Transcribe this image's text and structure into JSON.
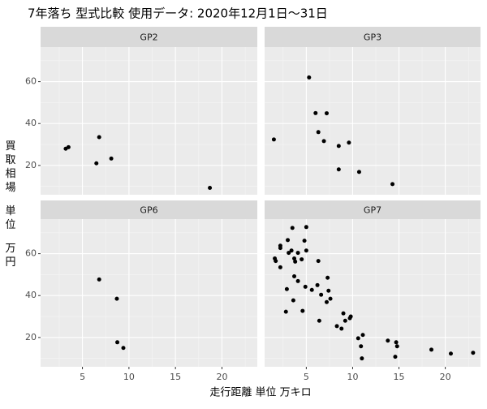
{
  "chart_data": {
    "type": "scatter",
    "title": "7年落ち 型式比較 使用データ: 2020年12月1日～31日",
    "x_label": "走行距離 単位 万キロ",
    "y_label": "買取相場 単位 万円",
    "xlim": [
      0.5,
      23.8
    ],
    "ylim": [
      6,
      76.5
    ],
    "xticks": [
      5,
      10,
      15,
      20
    ],
    "yticks": [
      20,
      40,
      60
    ],
    "grid": true,
    "color": "#000000",
    "panels": [
      {
        "name": "GP2",
        "x": [
          3.2,
          3.5,
          6.8,
          6.5,
          8.1,
          18.7
        ],
        "values": [
          28,
          28.7,
          33.5,
          21,
          23.3,
          9.3
        ]
      },
      {
        "name": "GP3",
        "x": [
          1.5,
          5.3,
          6.0,
          7.2,
          6.3,
          6.9,
          8.5,
          9.6,
          8.5,
          10.7,
          14.3
        ],
        "values": [
          32.4,
          62,
          45,
          44.9,
          35.9,
          31.6,
          29.3,
          30.9,
          18.1,
          16.9,
          11.1
        ]
      },
      {
        "name": "GP6",
        "x": [
          6.8,
          8.7,
          8.75,
          9.4
        ],
        "values": [
          47.7,
          38.5,
          17.7,
          15
        ]
      },
      {
        "name": "GP7",
        "x": [
          1.6,
          1.7,
          2.2,
          2.2,
          2.2,
          3.0,
          3.1,
          3.4,
          3.5,
          3.7,
          3.8,
          4.1,
          4.5,
          4.8,
          5.0,
          5.0,
          2.9,
          2.8,
          3.7,
          3.6,
          4.1,
          4.6,
          4.9,
          5.6,
          6.2,
          6.3,
          6.4,
          6.6,
          7.2,
          7.3,
          7.4,
          7.6,
          8.3,
          8.8,
          9.0,
          9.2,
          9.7,
          9.8,
          10.6,
          10.9,
          11.1,
          11.0,
          13.8,
          14.7,
          14.8,
          14.6,
          18.5,
          20.6,
          23.0
        ],
        "values": [
          57.7,
          56.5,
          63.8,
          62.7,
          53.5,
          66.5,
          60.4,
          61.5,
          72.3,
          57.7,
          56.2,
          60.4,
          57.3,
          66.2,
          72.7,
          61.5,
          43.1,
          32.3,
          49.2,
          37.7,
          46.9,
          32.7,
          44.2,
          42.7,
          45,
          56.5,
          28,
          40.4,
          36.9,
          48.5,
          42.3,
          38.5,
          25.4,
          24.2,
          31.5,
          28,
          29.2,
          30,
          19.6,
          15.8,
          21.2,
          10,
          18.5,
          17.7,
          15.8,
          10.8,
          14.2,
          12.3,
          12.7
        ]
      }
    ]
  }
}
